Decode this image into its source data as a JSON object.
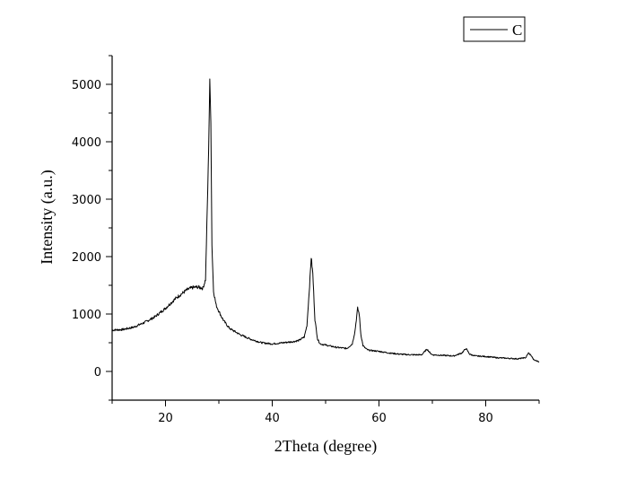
{
  "chart_data": {
    "type": "line",
    "xlabel": "2Theta (degree)",
    "ylabel": "Intensity (a.u.)",
    "xlim": [
      10,
      90
    ],
    "ylim": [
      -500,
      5500
    ],
    "x_ticks": [
      20,
      40,
      60,
      80
    ],
    "y_ticks": [
      0,
      1000,
      2000,
      3000,
      4000,
      5000
    ],
    "grid": false,
    "legend_position": "top-right",
    "series": [
      {
        "name": "C",
        "color": "#000000",
        "x": [
          10,
          12,
          14,
          16,
          18,
          20,
          22,
          24,
          25,
          26,
          27,
          27.5,
          28.0,
          28.3,
          28.5,
          28.7,
          29.0,
          29.5,
          30.0,
          30.5,
          31,
          32,
          34,
          36,
          38,
          40,
          42,
          44,
          45,
          46,
          46.5,
          47.0,
          47.3,
          47.6,
          48.0,
          48.5,
          49,
          50,
          52,
          54,
          55,
          55.5,
          56.0,
          56.3,
          56.6,
          57.0,
          57.5,
          58,
          60,
          62,
          64,
          66,
          68,
          69.0,
          69.5,
          70,
          72,
          74,
          75.5,
          76.3,
          77,
          78,
          80,
          82,
          84,
          86,
          87.5,
          88.0,
          88.5,
          89,
          90
        ],
        "y": [
          720,
          730,
          770,
          850,
          950,
          1100,
          1280,
          1420,
          1460,
          1470,
          1450,
          1600,
          3500,
          5020,
          4400,
          2200,
          1400,
          1150,
          1050,
          950,
          870,
          750,
          640,
          560,
          500,
          480,
          500,
          520,
          540,
          600,
          800,
          1500,
          1990,
          1700,
          900,
          560,
          480,
          460,
          420,
          400,
          480,
          700,
          1100,
          1000,
          650,
          450,
          400,
          370,
          350,
          320,
          300,
          290,
          290,
          390,
          330,
          290,
          280,
          270,
          320,
          400,
          300,
          270,
          260,
          240,
          230,
          220,
          240,
          320,
          280,
          200,
          170
        ]
      }
    ]
  }
}
